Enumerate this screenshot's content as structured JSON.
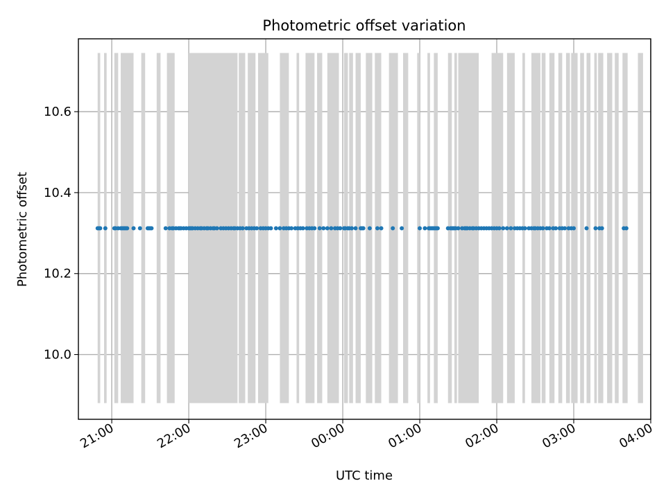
{
  "chart_data": {
    "type": "scatter",
    "title": "Photometric offset variation",
    "xlabel": "UTC time",
    "ylabel": "Photometric offset",
    "x_unit": "UTC time (HH:MM) on a continuous timeline; times after 00:00 fall on the following day",
    "xlim": [
      "20:34",
      "04:00"
    ],
    "ylim": [
      9.84,
      10.78
    ],
    "grid": true,
    "x_ticks": [
      "21:00",
      "22:00",
      "23:00",
      "00:00",
      "01:00",
      "02:00",
      "03:00",
      "04:00"
    ],
    "y_ticks": [
      "10.0",
      "10.2",
      "10.4",
      "10.6"
    ],
    "colors": {
      "points": "#1f77b4",
      "shading": "#d3d3d3",
      "grid": "#b0b0b0",
      "axes": "#000000"
    },
    "shaded_band": {
      "y": [
        9.88,
        10.745
      ]
    },
    "shaded_intervals": [
      [
        "20:49",
        "20:51"
      ],
      [
        "20:54",
        "20:56"
      ],
      [
        "21:02",
        "21:05"
      ],
      [
        "21:07",
        "21:17"
      ],
      [
        "21:23",
        "21:26"
      ],
      [
        "21:35",
        "21:38"
      ],
      [
        "21:43",
        "21:49"
      ],
      [
        "22:00",
        "22:38"
      ],
      [
        "22:39",
        "22:44"
      ],
      [
        "22:46",
        "22:52"
      ],
      [
        "22:54",
        "23:02"
      ],
      [
        "23:11",
        "23:18"
      ],
      [
        "23:24",
        "23:26"
      ],
      [
        "23:31",
        "23:38"
      ],
      [
        "23:40",
        "23:44"
      ],
      [
        "23:48",
        "23:57"
      ],
      [
        "00:01",
        "00:04"
      ],
      [
        "00:05",
        "00:08"
      ],
      [
        "00:10",
        "00:14"
      ],
      [
        "00:18",
        "00:23"
      ],
      [
        "00:25",
        "00:30"
      ],
      [
        "00:36",
        "00:43"
      ],
      [
        "00:47",
        "00:51"
      ],
      [
        "00:58",
        "01:00"
      ],
      [
        "01:06",
        "01:08"
      ],
      [
        "01:11",
        "01:14"
      ],
      [
        "01:22",
        "01:25"
      ],
      [
        "01:27",
        "01:29"
      ],
      [
        "01:30",
        "01:46"
      ],
      [
        "01:56",
        "02:05"
      ],
      [
        "02:08",
        "02:14"
      ],
      [
        "02:20",
        "02:22"
      ],
      [
        "02:27",
        "02:34"
      ],
      [
        "02:35",
        "02:38"
      ],
      [
        "02:41",
        "02:45"
      ],
      [
        "02:48",
        "02:51"
      ],
      [
        "02:54",
        "02:57"
      ],
      [
        "02:58",
        "03:03"
      ],
      [
        "03:05",
        "03:08"
      ],
      [
        "03:10",
        "03:13"
      ],
      [
        "03:16",
        "03:18"
      ],
      [
        "03:19",
        "03:23"
      ],
      [
        "03:26",
        "03:30"
      ],
      [
        "03:32",
        "03:35"
      ],
      [
        "03:38",
        "03:42"
      ],
      [
        "03:50",
        "03:54"
      ]
    ],
    "series": [
      {
        "y": 10.312,
        "x": [
          "20:49",
          "20:50",
          "20:51",
          "20:55",
          "21:02",
          "21:03",
          "21:05",
          "21:07",
          "21:08",
          "21:09",
          "21:10",
          "21:11",
          "21:12",
          "21:17",
          "21:22",
          "21:28",
          "21:29",
          "21:30",
          "21:31",
          "21:42",
          "21:45",
          "21:47",
          "21:48",
          "21:50",
          "21:52",
          "21:53",
          "21:54",
          "21:56",
          "21:58",
          "22:00",
          "22:01",
          "22:02",
          "22:03",
          "22:05",
          "22:07",
          "22:09",
          "22:10",
          "22:12",
          "22:14",
          "22:15",
          "22:17",
          "22:19",
          "22:20",
          "22:22",
          "22:25",
          "22:27",
          "22:29",
          "22:31",
          "22:33",
          "22:35",
          "22:36",
          "22:38",
          "22:40",
          "22:42",
          "22:45",
          "22:47",
          "22:49",
          "22:51",
          "22:53",
          "22:56",
          "22:58",
          "23:00",
          "23:02",
          "23:04",
          "23:08",
          "23:11",
          "23:14",
          "23:16",
          "23:18",
          "23:20",
          "23:23",
          "23:25",
          "23:27",
          "23:29",
          "23:32",
          "23:34",
          "23:36",
          "23:38",
          "23:42",
          "23:45",
          "23:48",
          "23:51",
          "23:54",
          "23:56",
          "23:58",
          "00:01",
          "00:02",
          "00:04",
          "00:05",
          "00:07",
          "00:10",
          "00:14",
          "00:15",
          "00:16",
          "00:21",
          "00:27",
          "00:30",
          "00:39",
          "00:46",
          "01:00",
          "01:04",
          "01:07",
          "01:08",
          "01:09",
          "01:10",
          "01:11",
          "01:12",
          "01:13",
          "01:14",
          "01:22",
          "01:24",
          "01:25",
          "01:26",
          "01:27",
          "01:28",
          "01:30",
          "01:33",
          "01:35",
          "01:36",
          "01:37",
          "01:39",
          "01:41",
          "01:42",
          "01:44",
          "01:46",
          "01:48",
          "01:50",
          "01:52",
          "01:54",
          "01:56",
          "01:58",
          "02:00",
          "02:02",
          "02:05",
          "02:08",
          "02:11",
          "02:14",
          "02:16",
          "02:18",
          "02:20",
          "02:22",
          "02:25",
          "02:27",
          "02:29",
          "02:30",
          "02:32",
          "02:34",
          "02:36",
          "02:39",
          "02:41",
          "02:44",
          "02:46",
          "02:49",
          "02:51",
          "02:53",
          "02:56",
          "02:58",
          "03:00",
          "03:10",
          "03:17",
          "03:20",
          "03:22",
          "03:39",
          "03:41"
        ]
      }
    ]
  }
}
